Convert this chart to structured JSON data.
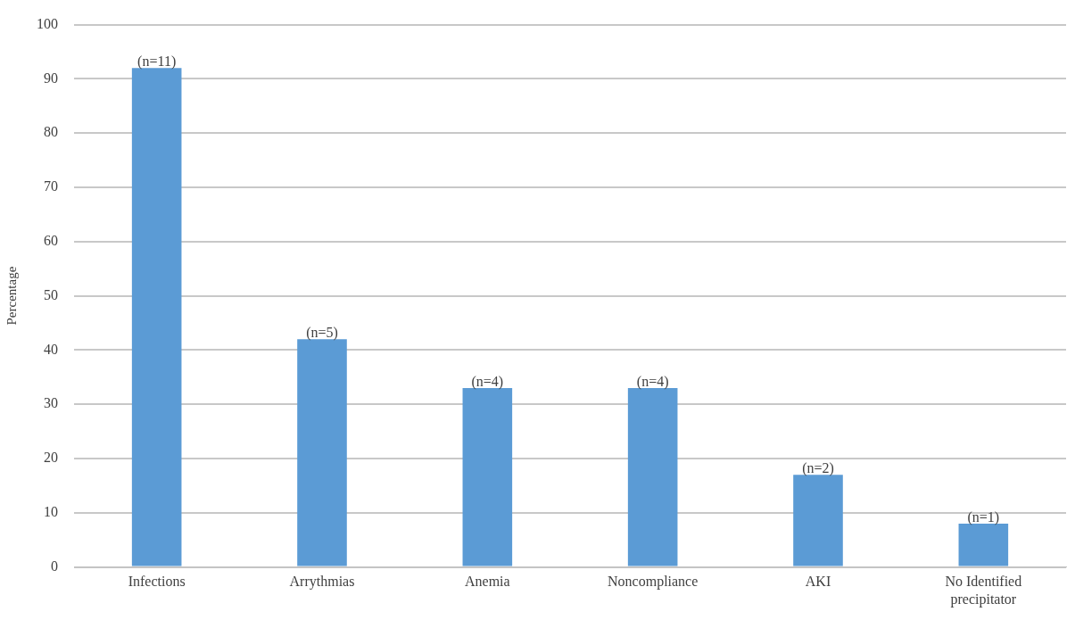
{
  "chart_data": {
    "type": "bar",
    "ylabel": "Percentage",
    "categories": [
      "Infections",
      "Arrythmias",
      "Anemia",
      "Noncompliance",
      "AKI",
      "No Identified precipitator"
    ],
    "values": [
      92,
      42,
      33,
      33,
      17,
      8
    ],
    "color": "#5b9bd5",
    "annotations": [
      {
        "text": "(n=11)",
        "x": "Infections",
        "y": 92
      },
      {
        "text": "(n=5)",
        "x": "Arrythmias",
        "y": 42
      },
      {
        "text": "(n=4)",
        "x": "Anemia",
        "y": 33
      },
      {
        "text": "(n=4)",
        "x": "Noncompliance",
        "y": 33
      },
      {
        "text": "(n=2)",
        "x": "AKI",
        "y": 17
      },
      {
        "text": "(n=1)",
        "x": "No Identified precipitator",
        "y": 8
      }
    ],
    "ylim": [
      0,
      100
    ],
    "yticks": [
      0,
      10,
      20,
      30,
      40,
      50,
      60,
      70,
      80,
      90,
      100
    ],
    "grid": "y",
    "legend": false
  }
}
